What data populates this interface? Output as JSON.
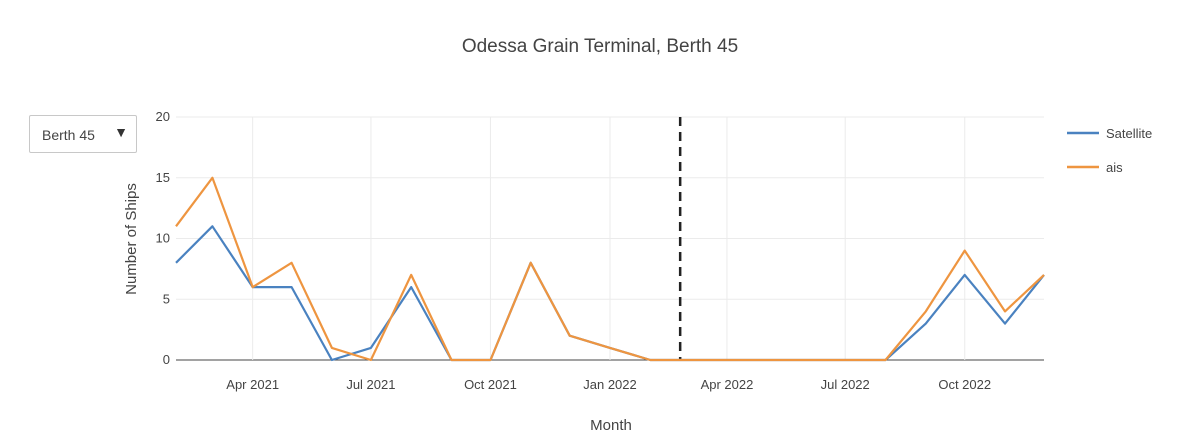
{
  "chart_data": {
    "type": "line",
    "title": "Odessa Grain Terminal, Berth 45",
    "xlabel": "Month",
    "ylabel": "Number of Ships",
    "ylim": [
      0,
      20
    ],
    "yticks": [
      0,
      5,
      10,
      15,
      20
    ],
    "xlim": [
      "2021-02-01",
      "2022-12-01"
    ],
    "xticks": [
      {
        "date": "2021-04-01",
        "label": "Apr 2021"
      },
      {
        "date": "2021-07-01",
        "label": "Jul 2021"
      },
      {
        "date": "2021-10-01",
        "label": "Oct 2021"
      },
      {
        "date": "2022-01-01",
        "label": "Jan 2022"
      },
      {
        "date": "2022-04-01",
        "label": "Apr 2022"
      },
      {
        "date": "2022-07-01",
        "label": "Jul 2022"
      },
      {
        "date": "2022-10-01",
        "label": "Oct 2022"
      }
    ],
    "x": [
      "2021-02-01",
      "2021-03-01",
      "2021-04-01",
      "2021-05-01",
      "2021-06-01",
      "2021-07-01",
      "2021-08-01",
      "2021-09-01",
      "2021-10-01",
      "2021-11-01",
      "2021-12-01",
      "2022-01-01",
      "2022-02-01",
      "2022-03-01",
      "2022-04-01",
      "2022-05-01",
      "2022-06-01",
      "2022-07-01",
      "2022-08-01",
      "2022-09-01",
      "2022-10-01",
      "2022-11-01",
      "2022-12-01"
    ],
    "series": [
      {
        "name": "Satellite",
        "color": "#4a82c0",
        "values": [
          8,
          11,
          6,
          6,
          0,
          1,
          6,
          0,
          0,
          8,
          2,
          1,
          0,
          0,
          0,
          0,
          0,
          0,
          0,
          3,
          7,
          3,
          7
        ]
      },
      {
        "name": "ais",
        "color": "#ee9540",
        "values": [
          11,
          15,
          6,
          8,
          1,
          0,
          7,
          0,
          0,
          8,
          2,
          1,
          0,
          0,
          0,
          0,
          0,
          0,
          0,
          4,
          9,
          4,
          7
        ]
      }
    ],
    "reference_line": {
      "date": "2022-02-24",
      "style": "dashed",
      "color": "#222222"
    },
    "grid": true,
    "legend": "top-right"
  },
  "dropdown": {
    "selected": "Berth 45"
  }
}
